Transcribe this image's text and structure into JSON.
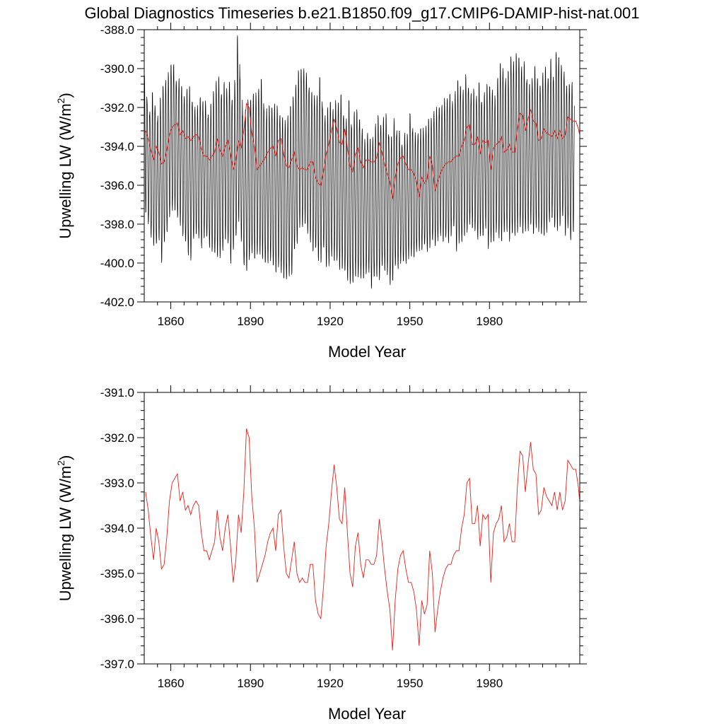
{
  "title": "Global Diagnostics Timeseries b.e21.B1850.f09_g17.CMIP6-DAMIP-hist-nat.001",
  "chart_data": [
    {
      "type": "line",
      "xlabel": "Model Year",
      "ylabel": "Upwelling LW (W/m",
      "ylabel_sup": "2",
      "ylabel_close": ")",
      "xlim": [
        1850,
        2014
      ],
      "ylim": [
        -402.0,
        -388.0
      ],
      "xticks": [
        1860,
        1890,
        1920,
        1950,
        1980
      ],
      "xtick_labels": [
        "1860",
        "1890",
        "1920",
        "1950",
        "1980"
      ],
      "yticks": [
        -402.0,
        -400.0,
        -398.0,
        -396.0,
        -394.0,
        -392.0,
        -390.0,
        -388.0
      ],
      "ytick_labels": [
        "-402.0",
        "-400.0",
        "-398.0",
        "-396.0",
        "-394.0",
        "-392.0",
        "-390.0",
        "-388.0"
      ],
      "grid": false,
      "series": [
        {
          "color": "#000000",
          "frequency": "monthly",
          "note_values": "monthly values oscillating with seasonal cycle around the annual mean; seasonal maxima and minima per year",
          "annual_max": [
            -390.4,
            -391.6,
            -392.1,
            -391.2,
            -391.8,
            -392.4,
            -391.5,
            -390.7,
            -390.6,
            -390.2,
            -389.6,
            -389.8,
            -390.6,
            -390.4,
            -390.9,
            -391.3,
            -391.0,
            -390.9,
            -391.5,
            -392.0,
            -391.9,
            -391.3,
            -391.7,
            -391.6,
            -392.3,
            -391.8,
            -391.0,
            -390.6,
            -390.4,
            -391.1,
            -390.7,
            -391.0,
            -390.5,
            -391.6,
            -390.5,
            -388.2,
            -390.5,
            -392.2,
            -392.1,
            -391.6,
            -391.4,
            -391.3,
            -391.2,
            -390.9,
            -390.5,
            -391.9,
            -392.0,
            -391.9,
            -391.8,
            -391.8,
            -391.9,
            -392.2,
            -392.5,
            -392.6,
            -392.3,
            -391.9,
            -391.3,
            -390.8,
            -390.1,
            -389.8,
            -390.0,
            -390.2,
            -390.8,
            -391.2,
            -391.3,
            -391.3,
            -390.4,
            -391.8,
            -392.4,
            -392.0,
            -391.5,
            -392.1,
            -391.6,
            -391.6,
            -391.3,
            -392.3,
            -392.5,
            -391.6,
            -392.8,
            -392.2,
            -392.1,
            -392.4,
            -393.1,
            -393.6,
            -393.2,
            -393.6,
            -393.4,
            -392.8,
            -392.4,
            -392.7,
            -392.5,
            -392.3,
            -393.3,
            -393.5,
            -392.5,
            -393.1,
            -393.2,
            -393.8,
            -393.3,
            -393.4,
            -392.1,
            -393.1,
            -393.3,
            -393.2,
            -393.1,
            -393.0,
            -392.9,
            -392.6,
            -392.4,
            -392.2,
            -392.0,
            -391.8,
            -391.9,
            -391.5,
            -391.4,
            -391.3,
            -391.6,
            -391.1,
            -390.6,
            -390.7,
            -391.1,
            -390.3,
            -390.8,
            -391.3,
            -391.0,
            -391.3,
            -390.7,
            -391.6,
            -391.2,
            -390.8,
            -390.7,
            -391.1,
            -391.4,
            -390.3,
            -389.7,
            -389.9,
            -390.4,
            -390.1,
            -389.2,
            -389.6,
            -389.2,
            -389.2,
            -389.9,
            -389.6,
            -390.4,
            -390.8,
            -390.4,
            -389.8,
            -390.5,
            -390.7,
            -390.2,
            -389.9,
            -390.3,
            -389.5,
            -390.4,
            -389.0,
            -389.4,
            -389.7,
            -390.1,
            -390.9,
            -390.6,
            -390.7
          ],
          "annual_min": [
            -397.4,
            -398.1,
            -398.7,
            -399.1,
            -399.2,
            -398.8,
            -400.0,
            -399.1,
            -398.4,
            -397.7,
            -397.4,
            -397.3,
            -397.8,
            -398.1,
            -398.6,
            -399.1,
            -399.6,
            -399.9,
            -398.9,
            -398.5,
            -398.8,
            -399.3,
            -398.7,
            -398.8,
            -399.2,
            -399.4,
            -399.7,
            -399.7,
            -399.8,
            -399.5,
            -398.8,
            -399.1,
            -400.1,
            -399.3,
            -398.8,
            -397.9,
            -398.9,
            -400.3,
            -400.4,
            -399.9,
            -399.6,
            -399.8,
            -399.7,
            -399.6,
            -399.8,
            -400.2,
            -400.0,
            -399.9,
            -400.3,
            -400.5,
            -400.3,
            -400.6,
            -400.8,
            -401.0,
            -400.7,
            -400.6,
            -399.5,
            -399.0,
            -398.2,
            -398.3,
            -398.0,
            -398.6,
            -399.0,
            -399.4,
            -399.4,
            -399.9,
            -400.0,
            -399.4,
            -400.2,
            -400.2,
            -399.8,
            -399.9,
            -400.0,
            -400.4,
            -400.3,
            -400.6,
            -400.9,
            -401.1,
            -401.2,
            -400.7,
            -400.8,
            -400.9,
            -400.8,
            -400.7,
            -400.5,
            -401.3,
            -400.9,
            -400.7,
            -400.9,
            -400.3,
            -400.4,
            -400.7,
            -401.2,
            -400.9,
            -400.3,
            -400.3,
            -400.0,
            -400.1,
            -400.0,
            -399.8,
            -399.8,
            -399.7,
            -399.5,
            -399.4,
            -399.3,
            -399.2,
            -399.4,
            -399.2,
            -399.0,
            -399.1,
            -398.9,
            -398.7,
            -398.9,
            -398.8,
            -399.0,
            -398.6,
            -398.3,
            -399.4,
            -399.0,
            -399.1,
            -398.6,
            -398.5,
            -398.1,
            -398.2,
            -398.5,
            -398.8,
            -398.6,
            -398.8,
            -398.2,
            -399.3,
            -399.1,
            -398.9,
            -398.5,
            -398.8,
            -398.9,
            -398.6,
            -398.4,
            -398.9,
            -398.7,
            -398.6,
            -398.5,
            -398.3,
            -398.5,
            -398.5,
            -398.4,
            -398.0,
            -398.7,
            -398.2,
            -398.4,
            -398.7,
            -398.6,
            -398.5,
            -398.0,
            -397.7,
            -398.3,
            -398.4,
            -398.1,
            -397.8,
            -398.6,
            -398.2,
            -399.0,
            -398.4,
            -398.0
          ]
        },
        {
          "color": "#e8201a",
          "frequency": "annual",
          "values": [
            -393.2,
            -393.6,
            -394.2,
            -394.7,
            -394.0,
            -394.3,
            -394.9,
            -394.8,
            -394.2,
            -393.4,
            -393.0,
            -392.9,
            -392.8,
            -393.4,
            -393.2,
            -393.6,
            -393.5,
            -393.7,
            -393.5,
            -393.4,
            -393.5,
            -394.1,
            -394.5,
            -394.5,
            -394.7,
            -394.5,
            -394.3,
            -393.6,
            -394.2,
            -394.5,
            -394.0,
            -393.7,
            -394.4,
            -395.2,
            -394.7,
            -393.7,
            -394.1,
            -393.2,
            -391.8,
            -392.0,
            -393.3,
            -394.0,
            -395.2,
            -395.0,
            -394.8,
            -394.6,
            -394.3,
            -394.1,
            -394.0,
            -394.5,
            -393.7,
            -393.6,
            -394.4,
            -395.0,
            -395.1,
            -394.7,
            -394.3,
            -395.0,
            -395.2,
            -395.1,
            -395.2,
            -395.2,
            -394.8,
            -394.8,
            -395.6,
            -395.9,
            -396.0,
            -395.3,
            -394.4,
            -393.9,
            -393.2,
            -392.6,
            -393.1,
            -393.8,
            -393.9,
            -393.1,
            -394.1,
            -395.0,
            -395.3,
            -394.4,
            -394.1,
            -394.8,
            -395.1,
            -394.7,
            -394.7,
            -394.8,
            -394.8,
            -394.6,
            -393.8,
            -394.3,
            -394.9,
            -395.4,
            -395.8,
            -396.7,
            -395.6,
            -394.9,
            -394.6,
            -394.5,
            -394.9,
            -395.2,
            -395.2,
            -395.4,
            -395.8,
            -396.6,
            -395.6,
            -395.9,
            -395.7,
            -394.5,
            -395.0,
            -396.3,
            -395.8,
            -395.4,
            -395.1,
            -394.9,
            -394.8,
            -394.8,
            -394.6,
            -394.5,
            -394.5,
            -394.0,
            -393.7,
            -393.0,
            -392.9,
            -393.9,
            -393.9,
            -393.5,
            -394.4,
            -393.7,
            -393.8,
            -393.7,
            -395.2,
            -394.1,
            -393.9,
            -393.8,
            -393.5,
            -394.3,
            -394.2,
            -393.9,
            -394.3,
            -394.3,
            -393.1,
            -392.3,
            -392.4,
            -393.2,
            -392.6,
            -392.1,
            -392.7,
            -392.8,
            -393.7,
            -393.6,
            -393.1,
            -393.3,
            -393.4,
            -393.5,
            -393.2,
            -393.6,
            -393.2,
            -393.6,
            -393.4,
            -392.5,
            -392.6,
            -392.7,
            -392.7,
            -393.1,
            -393.8
          ]
        }
      ]
    },
    {
      "type": "line",
      "xlabel": "Model Year",
      "ylabel": "Upwelling LW (W/m",
      "ylabel_sup": "2",
      "ylabel_close": ")",
      "xlim": [
        1850,
        2014
      ],
      "ylim": [
        -397.0,
        -391.0
      ],
      "xticks": [
        1860,
        1890,
        1920,
        1950,
        1980
      ],
      "xtick_labels": [
        "1860",
        "1890",
        "1920",
        "1950",
        "1980"
      ],
      "yticks": [
        -397.0,
        -396.0,
        -395.0,
        -394.0,
        -393.0,
        -392.0,
        -391.0
      ],
      "ytick_labels": [
        "-397.0",
        "-396.0",
        "-395.0",
        "-394.0",
        "-393.0",
        "-392.0",
        "-391.0"
      ],
      "grid": false,
      "series": [
        {
          "color": "#e8201a",
          "frequency": "annual",
          "values_ref": "same as top panel red series"
        }
      ]
    }
  ]
}
